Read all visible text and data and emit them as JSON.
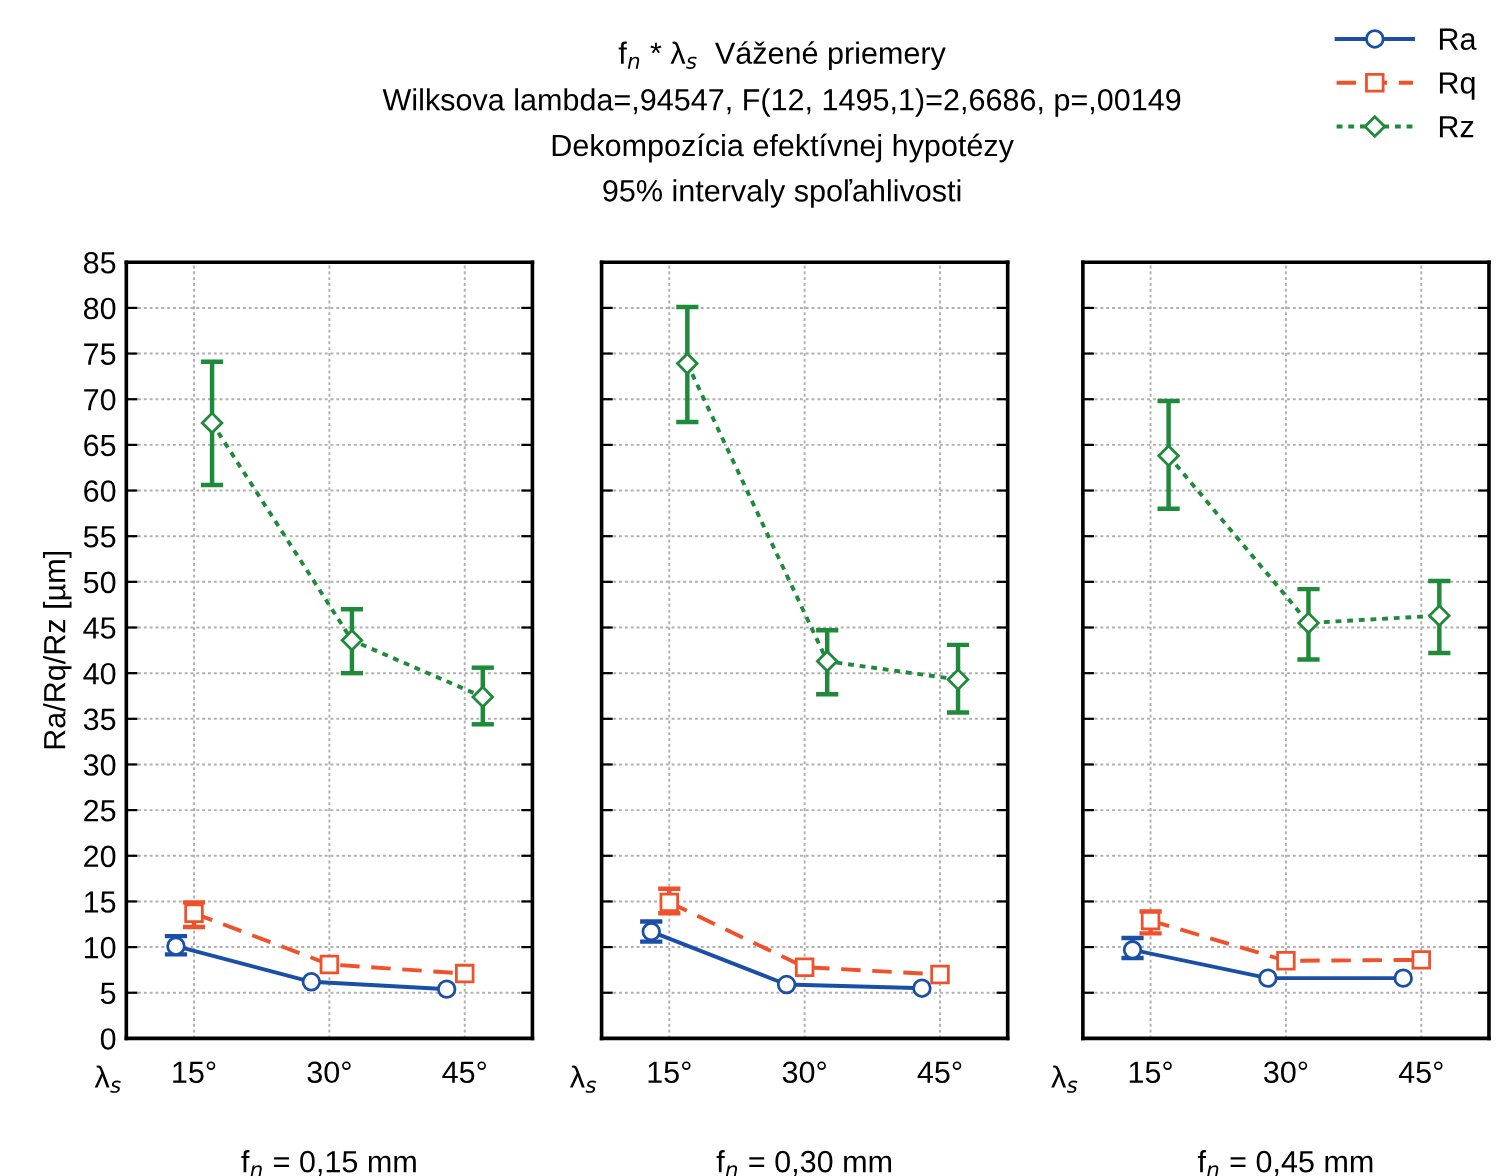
{
  "chart_data": [
    {
      "type": "line",
      "xlabel": "f$_{n}$ = 0,15 mm",
      "ylabel": "Ra/Rq/Rz [µm]",
      "annotations": [
        "λ$_{s}$"
      ],
      "xlim": [
        7.5,
        52.5
      ],
      "xticks": [
        {
          "value": 15,
          "label": "15°"
        },
        {
          "value": 30,
          "label": "30°"
        },
        {
          "value": 45,
          "label": "45°"
        }
      ],
      "ylim": [
        0,
        85
      ],
      "yticks": [
        0,
        5,
        10,
        15,
        20,
        25,
        30,
        35,
        40,
        45,
        50,
        55,
        60,
        65,
        70,
        75,
        80,
        85
      ],
      "grid": true,
      "legend": "top right",
      "series": [
        {
          "name": "Ra",
          "color": "#1a4fa8",
          "marker": "circle",
          "line_style": "solid",
          "x": [
            13,
            28,
            43
          ],
          "values": [
            10.1,
            6.2,
            5.4
          ],
          "errors": [
            [
              9.2,
              11.2
            ],
            null,
            null
          ]
        },
        {
          "name": "Rq",
          "color": "#f0502a",
          "marker": "square",
          "line_style": "dashed",
          "x": [
            15,
            30,
            45
          ],
          "values": [
            13.7,
            8.1,
            7.1
          ],
          "errors": [
            [
              12.2,
              14.9
            ],
            null,
            null
          ]
        },
        {
          "name": "Rz",
          "color": "#1e8a3a",
          "marker": "diamond",
          "line_style": "dotted",
          "x": [
            17,
            32.5,
            47
          ],
          "values": [
            67.4,
            43.6,
            37.4
          ],
          "errors": [
            [
              60.6,
              74.1
            ],
            [
              40.0,
              47.0
            ],
            [
              34.4,
              40.6
            ]
          ]
        }
      ]
    },
    {
      "type": "line",
      "title": "f$_{n}$ * λ$_{s}$  Vážené priemery",
      "subtitle": "Wilksova lambda=,94547, F(12, 1495,1)=2,6686, p=,00149\nDekompozícia efektívnej hypotézy\n95% intervaly spoľahlivosti",
      "xlabel": "f$_{n}$ = 0,30 mm",
      "annotations": [
        "λ$_{s}$"
      ],
      "xlim": [
        7.5,
        52.5
      ],
      "xticks": [
        {
          "value": 15,
          "label": "15°"
        },
        {
          "value": 30,
          "label": "30°"
        },
        {
          "value": 45,
          "label": "45°"
        }
      ],
      "ylim": [
        0,
        85
      ],
      "yticks": [
        0,
        5,
        10,
        15,
        20,
        25,
        30,
        35,
        40,
        45,
        50,
        55,
        60,
        65,
        70,
        75,
        80,
        85
      ],
      "grid": true,
      "tick_labels": "x",
      "series": [
        {
          "color": "#1a4fa8",
          "marker": "circle",
          "line_style": "solid",
          "x": [
            13,
            28,
            43
          ],
          "values": [
            11.7,
            5.9,
            5.5
          ],
          "errors": [
            [
              10.6,
              12.8
            ],
            null,
            null
          ]
        },
        {
          "color": "#f0502a",
          "marker": "square",
          "line_style": "dashed",
          "x": [
            15,
            30,
            45
          ],
          "values": [
            14.9,
            7.8,
            7.0
          ],
          "errors": [
            [
              13.7,
              16.4
            ],
            null,
            null
          ]
        },
        {
          "color": "#1e8a3a",
          "marker": "diamond",
          "line_style": "dotted",
          "x": [
            17,
            32.5,
            47
          ],
          "values": [
            73.9,
            41.3,
            39.3
          ],
          "errors": [
            [
              67.5,
              80.1
            ],
            [
              37.7,
              44.7
            ],
            [
              35.7,
              43.1
            ]
          ]
        }
      ]
    },
    {
      "type": "line",
      "xlabel": "f$_{n}$ = 0,45 mm",
      "annotations": [
        "λ$_{s}$"
      ],
      "xlim": [
        7.5,
        52.5
      ],
      "xticks": [
        {
          "value": 15,
          "label": "15°"
        },
        {
          "value": 30,
          "label": "30°"
        },
        {
          "value": 45,
          "label": "45°"
        }
      ],
      "ylim": [
        0,
        85
      ],
      "yticks": [
        0,
        5,
        10,
        15,
        20,
        25,
        30,
        35,
        40,
        45,
        50,
        55,
        60,
        65,
        70,
        75,
        80,
        85
      ],
      "grid": true,
      "tick_labels": "x",
      "series": [
        {
          "color": "#1a4fa8",
          "marker": "circle",
          "line_style": "solid",
          "x": [
            13,
            28,
            43
          ],
          "values": [
            9.7,
            6.6,
            6.6
          ],
          "errors": [
            [
              8.8,
              11.0
            ],
            null,
            null
          ]
        },
        {
          "color": "#f0502a",
          "marker": "square",
          "line_style": "dashed",
          "x": [
            15,
            30,
            45
          ],
          "values": [
            12.9,
            8.5,
            8.6
          ],
          "errors": [
            [
              11.5,
              13.9
            ],
            null,
            null
          ]
        },
        {
          "color": "#1e8a3a",
          "marker": "diamond",
          "line_style": "dotted",
          "x": [
            17,
            32.5,
            47
          ],
          "values": [
            63.8,
            45.5,
            46.3
          ],
          "errors": [
            [
              58.0,
              69.8
            ],
            [
              41.5,
              49.2
            ],
            [
              42.2,
              50.1
            ]
          ]
        }
      ]
    }
  ]
}
